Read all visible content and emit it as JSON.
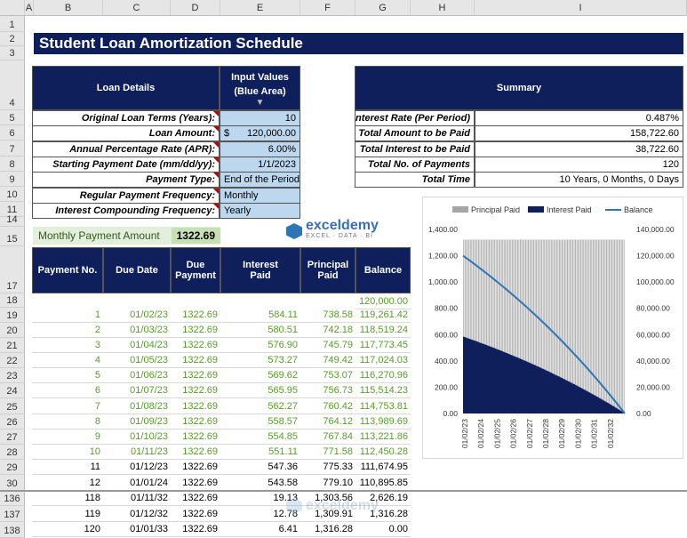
{
  "columns": [
    "A",
    "B",
    "C",
    "D",
    "E",
    "F",
    "G",
    "H",
    "I"
  ],
  "rows": [
    "1",
    "2",
    "3",
    "4",
    "5",
    "6",
    "7",
    "8",
    "9",
    "10",
    "11",
    "14",
    "15",
    "17",
    "18",
    "19",
    "20",
    "21",
    "22",
    "23",
    "24",
    "25",
    "26",
    "27",
    "28",
    "29",
    "30",
    "136",
    "137",
    "138"
  ],
  "title": "Student Loan Amortization Schedule",
  "loan": {
    "header": "Loan Details",
    "input_header": "Input Values (Blue Area)",
    "arrow": "▼",
    "labels": [
      "Original Loan Terms (Years):",
      "Loan Amount:",
      "Annual Percentage Rate (APR):",
      "Starting Payment Date (mm/dd/yy):",
      "Payment Type:",
      "Regular Payment Frequency:",
      "Interest Compounding Frequency:"
    ],
    "values": [
      "10",
      "120,000.00",
      "6.00%",
      "1/1/2023",
      "End of the Period",
      "Monthly",
      "Yearly"
    ],
    "currency": "$"
  },
  "summary": {
    "header": "Summary",
    "labels": [
      "Interest Rate (Per Period)",
      "Total Amount to be Paid",
      "Total Interest to be Paid",
      "Total No. of Payments",
      "Total Time"
    ],
    "values": [
      "0.487%",
      "158,722.60",
      "38,722.60",
      "120",
      "10 Years, 0 Months, 0 Days"
    ]
  },
  "monthly": {
    "label": "Monthly Payment Amount",
    "value": "1322.69"
  },
  "watermark": {
    "name": "exceldemy",
    "sub": "EXCEL · DATA · BI"
  },
  "table": {
    "headers": [
      "Payment No.",
      "Due Date",
      "Due Payment",
      "Interest Paid",
      "Principal Paid",
      "Balance"
    ],
    "start_balance": "120,000.00",
    "rows": [
      [
        "1",
        "01/02/23",
        "1322.69",
        "584.11",
        "738.58",
        "119,261.42"
      ],
      [
        "2",
        "01/03/23",
        "1322.69",
        "580.51",
        "742.18",
        "118,519.24"
      ],
      [
        "3",
        "01/04/23",
        "1322.69",
        "576.90",
        "745.79",
        "117,773.45"
      ],
      [
        "4",
        "01/05/23",
        "1322.69",
        "573.27",
        "749.42",
        "117,024.03"
      ],
      [
        "5",
        "01/06/23",
        "1322.69",
        "569.62",
        "753.07",
        "116,270.96"
      ],
      [
        "6",
        "01/07/23",
        "1322.69",
        "565.95",
        "756.73",
        "115,514.23"
      ],
      [
        "7",
        "01/08/23",
        "1322.69",
        "562.27",
        "760.42",
        "114,753.81"
      ],
      [
        "8",
        "01/09/23",
        "1322.69",
        "558.57",
        "764.12",
        "113,989.69"
      ],
      [
        "9",
        "01/10/23",
        "1322.69",
        "554.85",
        "767.84",
        "113,221.86"
      ],
      [
        "10",
        "01/11/23",
        "1322.69",
        "551.11",
        "771.58",
        "112,450.28"
      ],
      [
        "11",
        "01/12/23",
        "1322.69",
        "547.36",
        "775.33",
        "111,674.95"
      ],
      [
        "12",
        "01/01/24",
        "1322.69",
        "543.58",
        "779.10",
        "110,895.85"
      ],
      [
        "118",
        "01/11/32",
        "1322.69",
        "19.13",
        "1,303.56",
        "2,626.19"
      ],
      [
        "119",
        "01/12/32",
        "1322.69",
        "12.78",
        "1,309.91",
        "1,316.28"
      ],
      [
        "120",
        "01/01/33",
        "1322.69",
        "6.41",
        "1,316.28",
        "0.00"
      ]
    ]
  },
  "chart_data": {
    "type": "bar",
    "legend": [
      "Principal Paid",
      "Interest Paid",
      "Balance"
    ],
    "legend_position": "top",
    "y_left_ticks": [
      "1,400.00",
      "1,200.00",
      "1,000.00",
      "800.00",
      "600.00",
      "400.00",
      "200.00",
      "0.00"
    ],
    "y_right_ticks": [
      "140,000.00",
      "120,000.00",
      "100,000.00",
      "80,000.00",
      "60,000.00",
      "40,000.00",
      "20,000.00",
      "0.00"
    ],
    "x_ticks": [
      "01/02/23",
      "01/02/24",
      "01/02/25",
      "01/02/26",
      "01/02/27",
      "01/02/28",
      "01/02/29",
      "01/02/30",
      "01/02/31",
      "01/02/32"
    ],
    "ylim_left": [
      0,
      1400
    ],
    "ylim_right": [
      0,
      140000
    ],
    "n_periods": 120,
    "payment": 1322.69,
    "monthly_rate": 0.00487,
    "principal": 120000,
    "colors": {
      "principal": "#a6a6a6",
      "interest": "#0f1f5c",
      "balance": "#2e75b6"
    }
  }
}
